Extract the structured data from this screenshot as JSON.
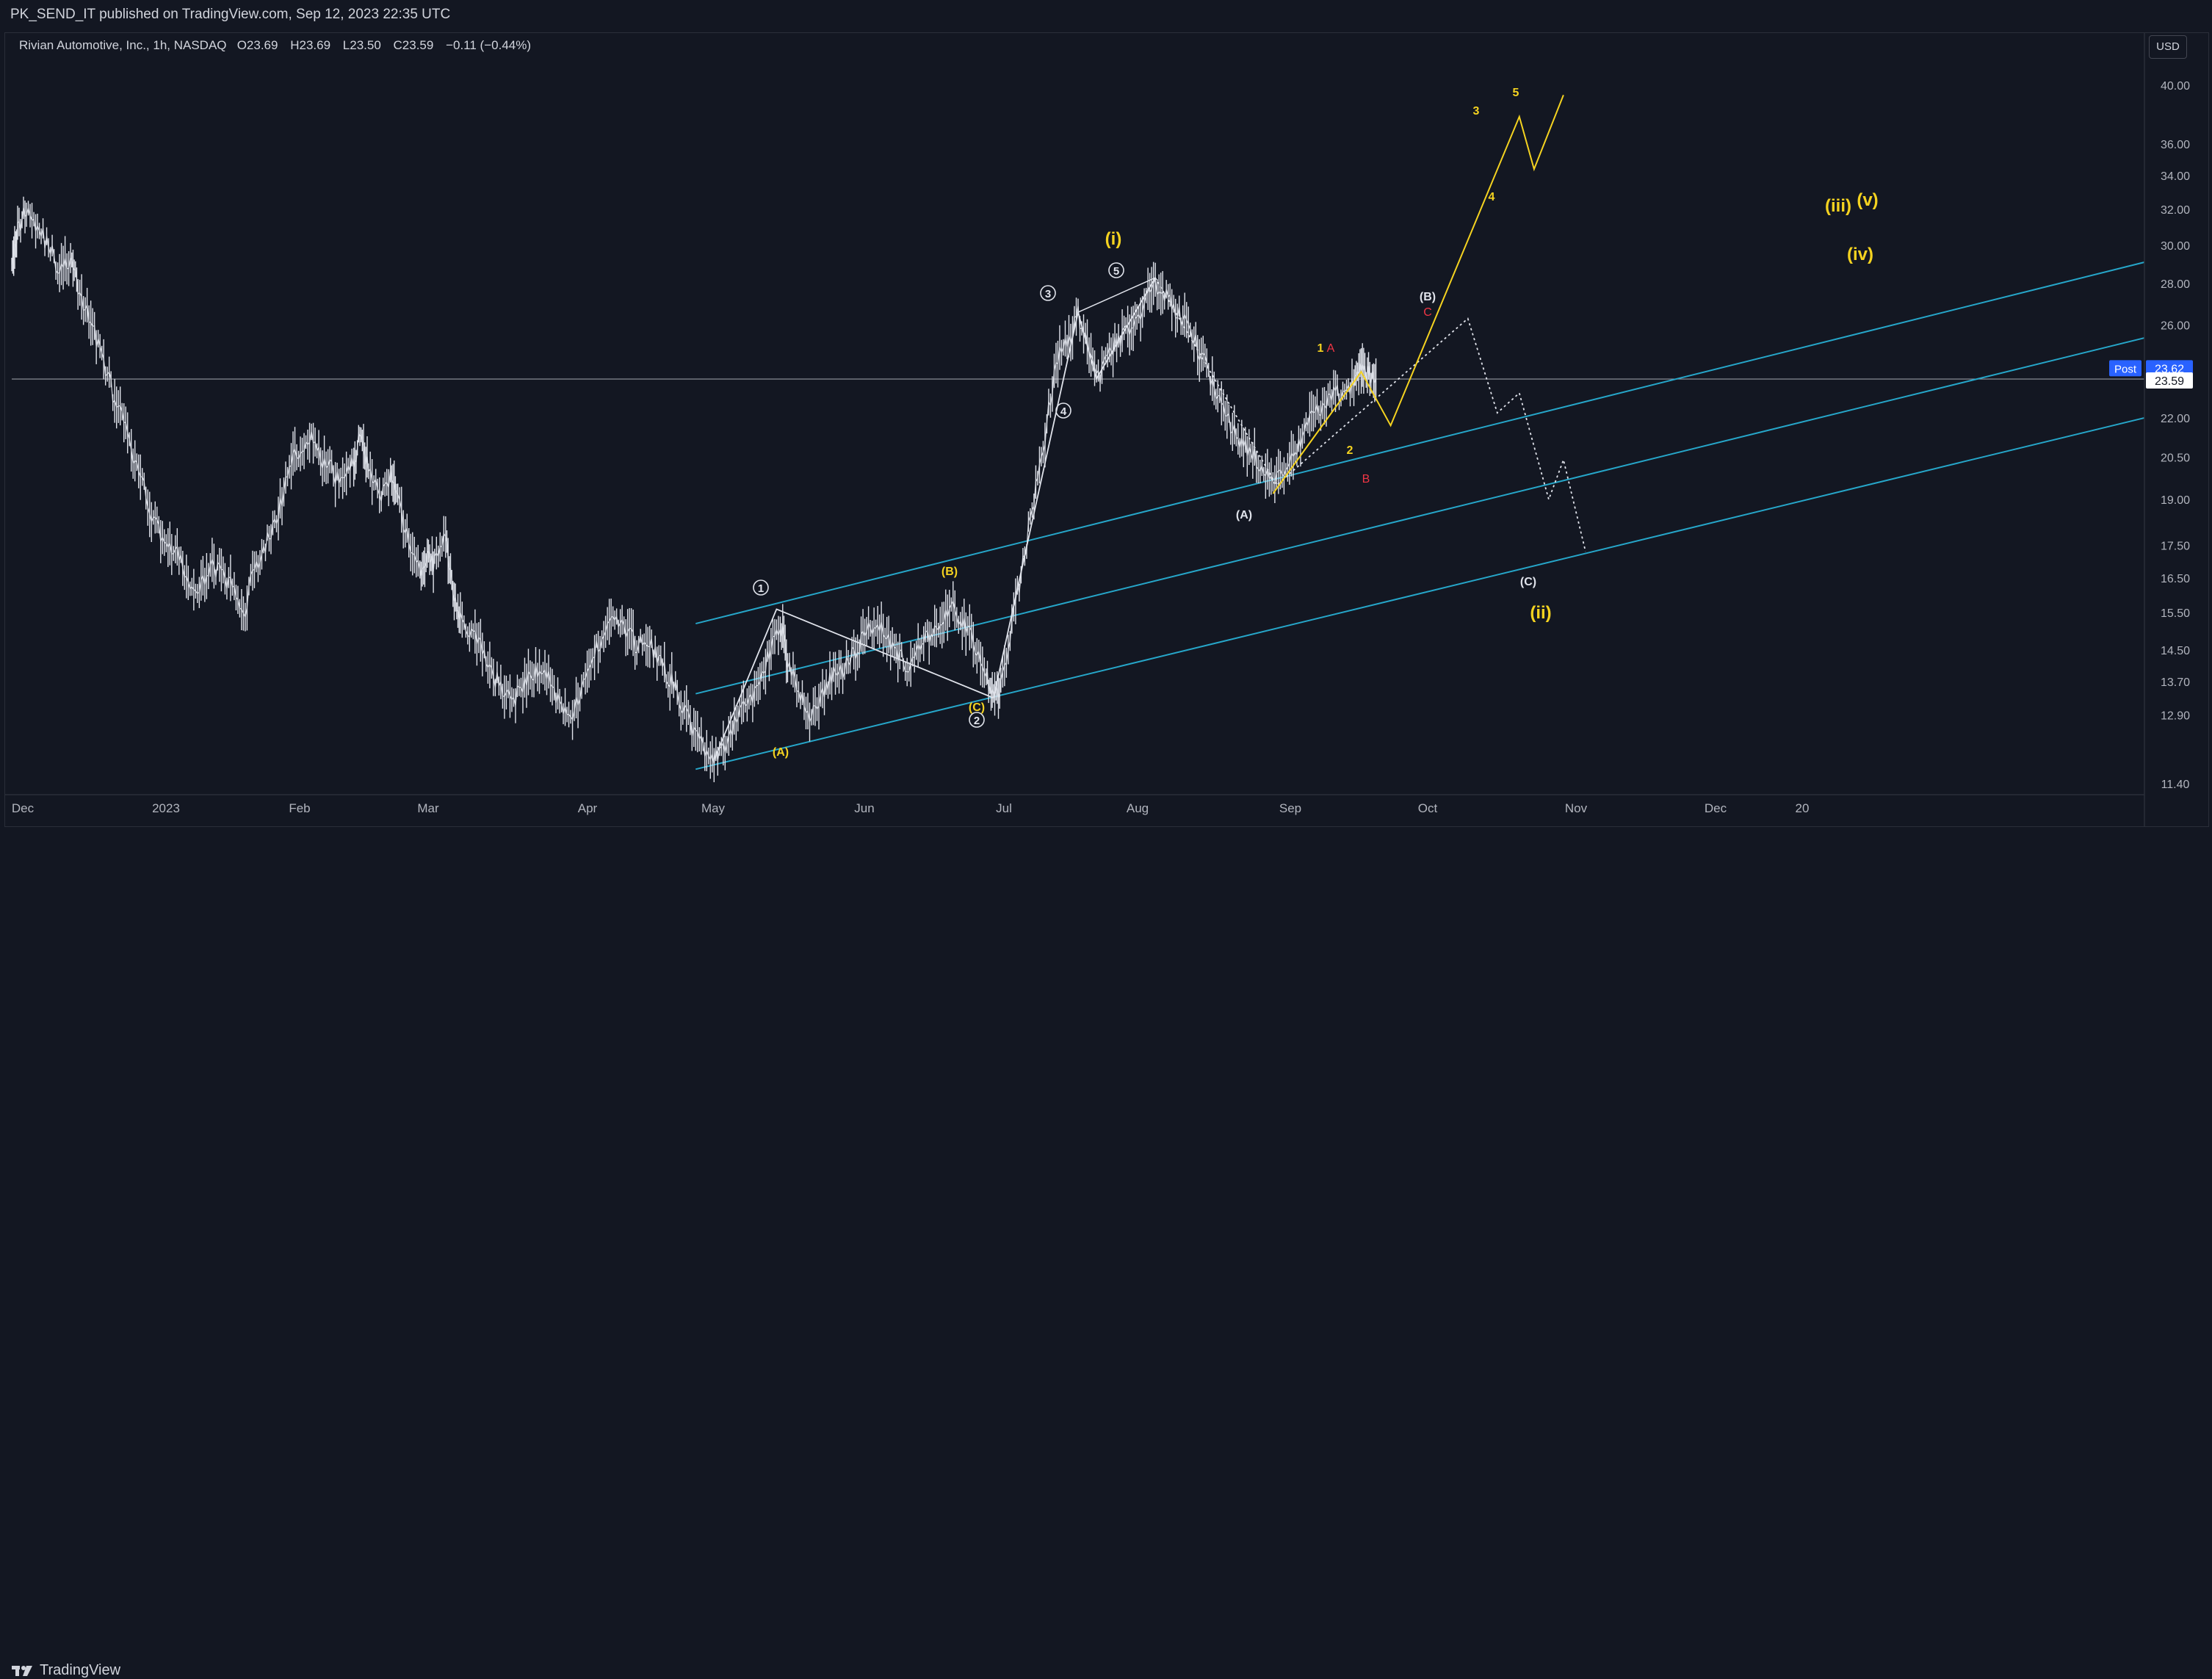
{
  "header": {
    "published": "PK_SEND_IT published on TradingView.com, Sep 12, 2023 22:35 UTC"
  },
  "legend": {
    "symbol": "Rivian Automotive, Inc., 1h, NASDAQ",
    "open_label": "O",
    "open": "23.69",
    "high_label": "H",
    "high": "23.69",
    "low_label": "L",
    "low": "23.50",
    "close_label": "C",
    "close": "23.59",
    "change": "−0.11 (−0.44%)"
  },
  "currency_button": "USD",
  "footer": {
    "brand": "TradingView"
  },
  "colors": {
    "background": "#131722",
    "candle": "#e0e3eb",
    "channel": "#26a6c9",
    "wave_yellow": "#f5d320",
    "wave_red": "#f23645",
    "price_tag": "#2962ff"
  },
  "chart_data": {
    "type": "line",
    "title": "Rivian Automotive, Inc., 1h, NASDAQ",
    "x_ticks": [
      "Dec",
      "2023",
      "Feb",
      "Mar",
      "Apr",
      "May",
      "Jun",
      "Jul",
      "Aug",
      "Sep",
      "Oct",
      "Nov",
      "Dec",
      "20"
    ],
    "y_ticks": [
      "40.00",
      "36.00",
      "34.00",
      "32.00",
      "30.00",
      "28.00",
      "26.00",
      "24.00",
      "22.00",
      "20.50",
      "19.00",
      "17.50",
      "16.50",
      "15.50",
      "14.50",
      "13.70",
      "12.90",
      "11.40"
    ],
    "y_scale": "log",
    "ylim": [
      11.0,
      41.5
    ],
    "last_price": "23.59",
    "post_label": "Post",
    "post_price": "23.62",
    "price_series": [
      {
        "x": 0,
        "y": 29.5
      },
      {
        "x": 0.8,
        "y": 30.8
      },
      {
        "x": 2,
        "y": 32.2
      },
      {
        "x": 3.5,
        "y": 31.0
      },
      {
        "x": 5,
        "y": 30.0
      },
      {
        "x": 6.5,
        "y": 28.6
      },
      {
        "x": 8,
        "y": 29.2
      },
      {
        "x": 9,
        "y": 27.8
      },
      {
        "x": 10.5,
        "y": 26.3
      },
      {
        "x": 12,
        "y": 25.0
      },
      {
        "x": 13.5,
        "y": 23.2
      },
      {
        "x": 15,
        "y": 22.0
      },
      {
        "x": 16.5,
        "y": 20.5
      },
      {
        "x": 18,
        "y": 19.3
      },
      {
        "x": 19.5,
        "y": 18.2
      },
      {
        "x": 21,
        "y": 17.6
      },
      {
        "x": 22.5,
        "y": 17.2
      },
      {
        "x": 24,
        "y": 16.4
      },
      {
        "x": 25.5,
        "y": 16.0
      },
      {
        "x": 27,
        "y": 17.0
      },
      {
        "x": 28.5,
        "y": 16.6
      },
      {
        "x": 30,
        "y": 16.2
      },
      {
        "x": 31.5,
        "y": 15.4
      },
      {
        "x": 33,
        "y": 16.8
      },
      {
        "x": 34.5,
        "y": 17.5
      },
      {
        "x": 36,
        "y": 18.3
      },
      {
        "x": 37.5,
        "y": 19.8
      },
      {
        "x": 39,
        "y": 20.8
      },
      {
        "x": 40.5,
        "y": 21.3
      },
      {
        "x": 42,
        "y": 20.4
      },
      {
        "x": 43.5,
        "y": 20.0
      },
      {
        "x": 45,
        "y": 19.6
      },
      {
        "x": 46.5,
        "y": 20.3
      },
      {
        "x": 47.5,
        "y": 21.4
      },
      {
        "x": 48.5,
        "y": 20.2
      },
      {
        "x": 50,
        "y": 19.1
      },
      {
        "x": 51.5,
        "y": 19.7
      },
      {
        "x": 52.5,
        "y": 18.9
      },
      {
        "x": 54,
        "y": 17.6
      },
      {
        "x": 55.5,
        "y": 16.6
      },
      {
        "x": 56.5,
        "y": 17.2
      },
      {
        "x": 57.5,
        "y": 16.9
      },
      {
        "x": 59,
        "y": 17.8
      },
      {
        "x": 60,
        "y": 16.2
      },
      {
        "x": 61,
        "y": 15.4
      },
      {
        "x": 62.5,
        "y": 14.9
      },
      {
        "x": 64,
        "y": 14.5
      },
      {
        "x": 65.5,
        "y": 13.8
      },
      {
        "x": 67,
        "y": 13.5
      },
      {
        "x": 68.5,
        "y": 13.3
      },
      {
        "x": 70,
        "y": 13.7
      },
      {
        "x": 71.5,
        "y": 14.0
      },
      {
        "x": 73,
        "y": 13.8
      },
      {
        "x": 74.5,
        "y": 13.2
      },
      {
        "x": 76,
        "y": 12.9
      },
      {
        "x": 77.5,
        "y": 13.4
      },
      {
        "x": 79,
        "y": 14.3
      },
      {
        "x": 80.5,
        "y": 15.0
      },
      {
        "x": 82,
        "y": 15.4
      },
      {
        "x": 83.5,
        "y": 15.0
      },
      {
        "x": 85,
        "y": 14.6
      },
      {
        "x": 86.5,
        "y": 14.8
      },
      {
        "x": 88,
        "y": 14.2
      },
      {
        "x": 89.5,
        "y": 13.8
      },
      {
        "x": 91,
        "y": 13.2
      },
      {
        "x": 92.5,
        "y": 12.6
      },
      {
        "x": 94,
        "y": 12.2
      },
      {
        "x": 95.5,
        "y": 11.9
      },
      {
        "x": 97,
        "y": 12.1
      },
      {
        "x": 98.5,
        "y": 12.8
      },
      {
        "x": 100,
        "y": 13.2
      },
      {
        "x": 101.5,
        "y": 13.6
      },
      {
        "x": 103,
        "y": 14.4
      },
      {
        "x": 104.5,
        "y": 15.3
      },
      {
        "x": 105.5,
        "y": 14.2
      },
      {
        "x": 107,
        "y": 13.4
      },
      {
        "x": 108.5,
        "y": 12.9
      },
      {
        "x": 110,
        "y": 13.3
      },
      {
        "x": 111.5,
        "y": 13.8
      },
      {
        "x": 113,
        "y": 14.0
      },
      {
        "x": 114.5,
        "y": 14.4
      },
      {
        "x": 116,
        "y": 14.9
      },
      {
        "x": 117.5,
        "y": 15.3
      },
      {
        "x": 119,
        "y": 14.9
      },
      {
        "x": 120.5,
        "y": 14.4
      },
      {
        "x": 122,
        "y": 14.0
      },
      {
        "x": 123.5,
        "y": 14.5
      },
      {
        "x": 125,
        "y": 15.0
      },
      {
        "x": 126.5,
        "y": 15.2
      },
      {
        "x": 128,
        "y": 15.6
      },
      {
        "x": 129.5,
        "y": 15.2
      },
      {
        "x": 131,
        "y": 14.6
      },
      {
        "x": 132.5,
        "y": 13.8
      },
      {
        "x": 133.5,
        "y": 13.3
      },
      {
        "x": 134.5,
        "y": 13.6
      },
      {
        "x": 136,
        "y": 15.2
      },
      {
        "x": 137.5,
        "y": 16.9
      },
      {
        "x": 139,
        "y": 19.0
      },
      {
        "x": 140.5,
        "y": 21.3
      },
      {
        "x": 142,
        "y": 24.3
      },
      {
        "x": 143.5,
        "y": 25.2
      },
      {
        "x": 145,
        "y": 26.5
      },
      {
        "x": 146.5,
        "y": 25.0
      },
      {
        "x": 148,
        "y": 23.7
      },
      {
        "x": 149.5,
        "y": 24.8
      },
      {
        "x": 151,
        "y": 25.4
      },
      {
        "x": 152.5,
        "y": 26.0
      },
      {
        "x": 154,
        "y": 27.0
      },
      {
        "x": 155.5,
        "y": 28.0
      },
      {
        "x": 157,
        "y": 27.3
      },
      {
        "x": 158.5,
        "y": 26.6
      },
      {
        "x": 160,
        "y": 25.9
      },
      {
        "x": 161.5,
        "y": 24.8
      },
      {
        "x": 163,
        "y": 23.7
      },
      {
        "x": 164.5,
        "y": 22.6
      },
      {
        "x": 166,
        "y": 21.5
      },
      {
        "x": 167.5,
        "y": 20.9
      },
      {
        "x": 169,
        "y": 20.6
      },
      {
        "x": 170.5,
        "y": 19.9
      },
      {
        "x": 172,
        "y": 19.6
      },
      {
        "x": 173.5,
        "y": 20.3
      },
      {
        "x": 175,
        "y": 21.0
      },
      {
        "x": 176.5,
        "y": 21.8
      },
      {
        "x": 178,
        "y": 22.4
      },
      {
        "x": 179.5,
        "y": 23.1
      },
      {
        "x": 181,
        "y": 22.9
      },
      {
        "x": 182.5,
        "y": 23.4
      },
      {
        "x": 183.5,
        "y": 24.2
      },
      {
        "x": 184.5,
        "y": 23.8
      },
      {
        "x": 185.5,
        "y": 23.59
      }
    ],
    "channel_lines": [
      {
        "name": "upper",
        "x": [
          93,
          290
        ],
        "y": [
          15.2,
          29.1
        ]
      },
      {
        "name": "middle",
        "x": [
          93,
          290
        ],
        "y": [
          13.4,
          25.4
        ]
      },
      {
        "name": "lower",
        "x": [
          93,
          290
        ],
        "y": [
          11.7,
          22.0
        ]
      }
    ],
    "horizontal_line": {
      "y": 23.59
    },
    "waves": {
      "primary_white": {
        "points": [
          {
            "x": 95.5,
            "y": 11.9
          },
          {
            "x": 104,
            "y": 15.6
          },
          {
            "x": 133.5,
            "y": 13.3
          },
          {
            "x": 145,
            "y": 26.6
          },
          {
            "x": 147.5,
            "y": 23.6
          },
          {
            "x": 155.5,
            "y": 28.3
          }
        ],
        "labels": [
          "①",
          "②",
          "③",
          "④",
          "⑤"
        ]
      },
      "abc_white_dotted": {
        "points": [
          {
            "x": 155.5,
            "y": 28.3
          },
          {
            "x": 172,
            "y": 19.5
          },
          {
            "x": 198,
            "y": 26.3
          },
          {
            "x": 202,
            "y": 22.2
          },
          {
            "x": 205,
            "y": 23.0
          },
          {
            "x": 209,
            "y": 19.0
          },
          {
            "x": 211,
            "y": 20.4
          },
          {
            "x": 214,
            "y": 17.3
          }
        ],
        "labels": [
          "(A)",
          "(B)",
          "(C)"
        ]
      },
      "yellow_impulse": {
        "points": [
          {
            "x": 171.5,
            "y": 19.2
          },
          {
            "x": 183.5,
            "y": 23.9
          },
          {
            "x": 187.5,
            "y": 21.7
          },
          {
            "x": 205,
            "y": 37.8
          },
          {
            "x": 207,
            "y": 34.4
          },
          {
            "x": 211,
            "y": 39.3
          }
        ],
        "labels": [
          "1",
          "2",
          "3",
          "4",
          "5"
        ]
      },
      "red_abc": {
        "labels": [
          "A",
          "B",
          "C"
        ]
      },
      "yellow_subwave": {
        "labels": [
          "(A)",
          "(B)",
          "(C)"
        ]
      },
      "degree_labels": [
        "(i)",
        "(ii)",
        "(iii)",
        "(iv)",
        "(v)"
      ]
    }
  }
}
